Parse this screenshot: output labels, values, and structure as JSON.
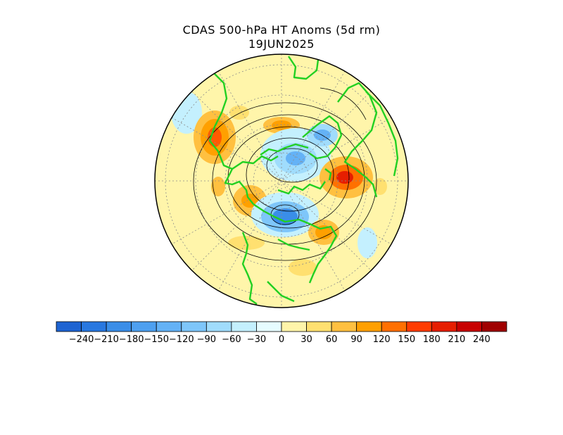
{
  "title": {
    "line1": "CDAS 500-hPa HT Anoms (5d rm)",
    "line2": "19JUN2025"
  },
  "colors": {
    "land_outline": "#22d022",
    "contour_line": "#000000",
    "grid_line": "#8c8c8c",
    "boundary": "#000000",
    "background_fill": "#fff5aa"
  },
  "colorbar": {
    "colors": [
      "#1e64d2",
      "#2878e0",
      "#3a8ee8",
      "#4ea0f0",
      "#64b2f6",
      "#7ec6fa",
      "#a0dcfc",
      "#c4f0fe",
      "#e6fcff",
      "#fff5aa",
      "#ffe070",
      "#ffc040",
      "#ffa000",
      "#ff7000",
      "#ff3c00",
      "#e61e00",
      "#c80000",
      "#a00000"
    ],
    "tick_labels": [
      "−240",
      "−210",
      "−180",
      "−150",
      "−120",
      "−90",
      "−60",
      "−30",
      "0",
      "30",
      "60",
      "90",
      "120",
      "150",
      "180",
      "210",
      "240"
    ]
  },
  "map": {
    "projection": "polar stereographic (North Pole)",
    "anomaly_regions": [
      {
        "name": "blue-pacific",
        "color": "#64b2f6"
      },
      {
        "name": "red-west",
        "color": "#ff7000"
      },
      {
        "name": "red-east",
        "color": "#ff3c00"
      }
    ]
  }
}
